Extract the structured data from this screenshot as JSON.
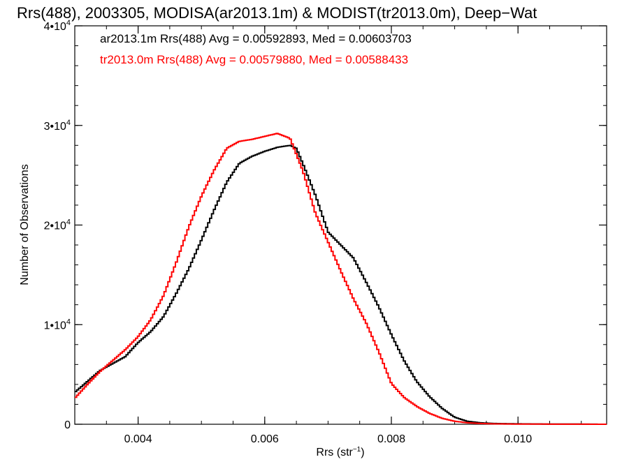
{
  "chart_data": {
    "type": "line",
    "title": "Rrs(488), 2003305, MODISA(ar2013.1m) & MODIST(tr2013.0m), Deep−Wat",
    "xlabel": "Rrs (str",
    "xlabel_sup": "−1",
    "xlabel_close": ")",
    "ylabel": "Number of Observations",
    "xlim": [
      0.003,
      0.0114
    ],
    "ylim": [
      0,
      40000
    ],
    "x_ticks": [
      {
        "value": 0.004,
        "label": "0.004"
      },
      {
        "value": 0.006,
        "label": "0.006"
      },
      {
        "value": 0.008,
        "label": "0.008"
      },
      {
        "value": 0.01,
        "label": "0.010"
      }
    ],
    "y_ticks": [
      {
        "value": 0,
        "base": "0",
        "exp": ""
      },
      {
        "value": 10000,
        "base": "1•10",
        "exp": "4"
      },
      {
        "value": 20000,
        "base": "2•10",
        "exp": "4"
      },
      {
        "value": 30000,
        "base": "3•10",
        "exp": "4"
      },
      {
        "value": 40000,
        "base": "4•10",
        "exp": "4"
      }
    ],
    "grid": false,
    "legend_position": "top-left",
    "series": [
      {
        "label": "ar2013.1m Rrs(488) Avg = 0.00592893, Med = 0.00603703",
        "color": "#000000",
        "x": [
          0.003,
          0.0032,
          0.0034,
          0.0036,
          0.0038,
          0.004,
          0.0042,
          0.0044,
          0.0046,
          0.0048,
          0.005,
          0.0052,
          0.0054,
          0.0056,
          0.0058,
          0.006,
          0.0062,
          0.0064,
          0.0065,
          0.0066,
          0.0068,
          0.007,
          0.0072,
          0.0074,
          0.0076,
          0.0078,
          0.008,
          0.0082,
          0.0084,
          0.0086,
          0.0088,
          0.009,
          0.0092,
          0.0094,
          0.0096,
          0.01,
          0.0105,
          0.011,
          0.0114
        ],
        "y": [
          3200,
          4300,
          5400,
          6100,
          6800,
          8200,
          9300,
          10800,
          13100,
          15600,
          18500,
          21500,
          24300,
          26200,
          26900,
          27400,
          27800,
          28000,
          27700,
          26200,
          23000,
          19300,
          18000,
          16700,
          14300,
          11800,
          9000,
          6400,
          4300,
          2800,
          1600,
          700,
          300,
          150,
          80,
          40,
          20,
          10,
          0
        ]
      },
      {
        "label": "tr2013.0m Rrs(488) Avg = 0.00579880, Med = 0.00588433",
        "color": "#ff0000",
        "x": [
          0.003,
          0.0032,
          0.0034,
          0.0036,
          0.0038,
          0.004,
          0.0042,
          0.0044,
          0.0046,
          0.0048,
          0.005,
          0.0052,
          0.0054,
          0.0056,
          0.0058,
          0.006,
          0.0062,
          0.0064,
          0.0066,
          0.0068,
          0.007,
          0.0072,
          0.0074,
          0.0076,
          0.0078,
          0.008,
          0.0082,
          0.0084,
          0.0086,
          0.0088,
          0.009,
          0.0092,
          0.0094,
          0.0096,
          0.01,
          0.0105,
          0.011,
          0.0114
        ],
        "y": [
          2600,
          4000,
          5300,
          6400,
          7500,
          8800,
          10500,
          12900,
          16200,
          19800,
          22900,
          25500,
          27700,
          28400,
          28600,
          28900,
          29200,
          28700,
          25500,
          21200,
          18300,
          15400,
          12600,
          10200,
          7300,
          4100,
          2700,
          1800,
          1100,
          600,
          300,
          150,
          80,
          40,
          20,
          10,
          5,
          0
        ]
      }
    ]
  }
}
